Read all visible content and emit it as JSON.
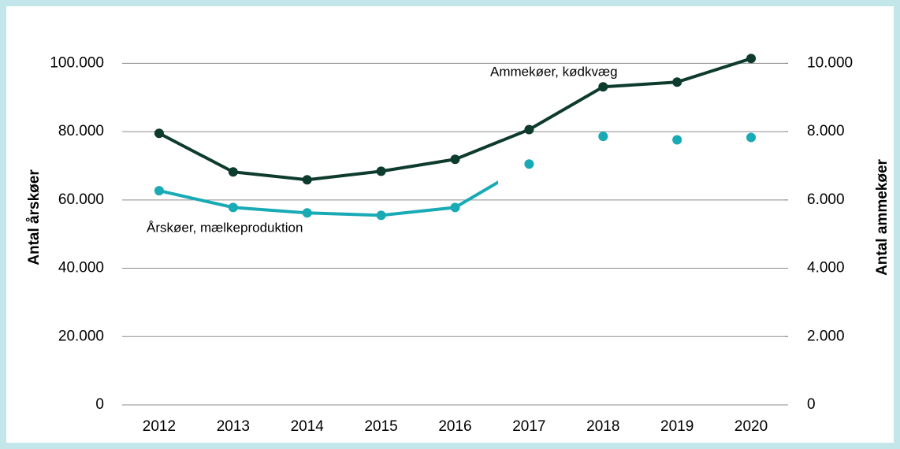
{
  "chart_data": {
    "type": "line",
    "categories": [
      "2012",
      "2013",
      "2014",
      "2015",
      "2016",
      "2017",
      "2018",
      "2019",
      "2020"
    ],
    "ylabel": "Antal årskøer",
    "y2label": "Antal ammekøer",
    "ylim": [
      0,
      110000
    ],
    "yticks": [
      0,
      {
        "value": 20000,
        "label": "20.000"
      },
      {
        "value": 40000,
        "label": "40.000"
      },
      {
        "value": 60000,
        "label": "60.000"
      },
      {
        "value": 80000,
        "label": "80.000"
      },
      {
        "value": 100000,
        "label": "100.000"
      }
    ],
    "y2lim": [
      0,
      11000
    ],
    "y2ticks": [
      0,
      {
        "value": 2000,
        "label": "2.000"
      },
      {
        "value": 4000,
        "label": "4.000"
      },
      {
        "value": 6000,
        "label": "6.000"
      },
      {
        "value": 8000,
        "label": "8.000"
      },
      {
        "value": 10000,
        "label": "10.000"
      }
    ],
    "grid": true,
    "series": [
      {
        "name": "Ammekøer, kødkvæg",
        "color": "#0d3b2e",
        "axis": "y2",
        "values": [
          7950,
          6820,
          6590,
          6840,
          7190,
          8060,
          9310,
          9450,
          10140
        ]
      },
      {
        "name": "Årskøer, mælkeproduktion",
        "color": "#18aab5",
        "values": [
          62700,
          57800,
          56200,
          55500,
          57800,
          70500,
          78600,
          77600,
          78300
        ]
      }
    ]
  }
}
